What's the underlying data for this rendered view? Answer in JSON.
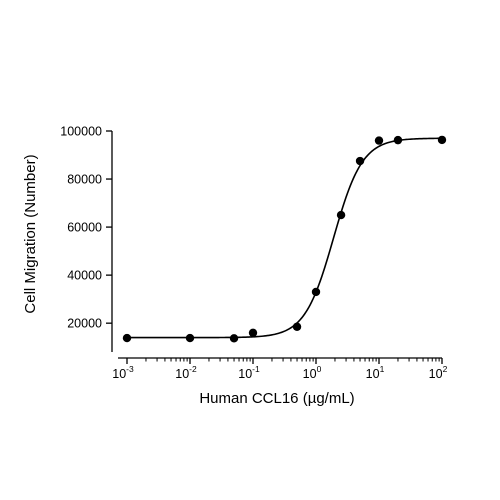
{
  "chart_data": {
    "type": "scatter",
    "xlabel": "Human CCL16 (µg/mL)",
    "ylabel": "Cell Migration (Number)",
    "x_scale": "log",
    "x_ticks": [
      {
        "value": 0.001,
        "base": "10",
        "exp": "-3"
      },
      {
        "value": 0.01,
        "base": "10",
        "exp": "-2"
      },
      {
        "value": 0.1,
        "base": "10",
        "exp": "-1"
      },
      {
        "value": 1,
        "base": "10",
        "exp": "0"
      },
      {
        "value": 10,
        "base": "10",
        "exp": "1"
      },
      {
        "value": 100,
        "base": "10",
        "exp": "2"
      }
    ],
    "y_ticks": [
      {
        "value": 20000,
        "label": "20000"
      },
      {
        "value": 40000,
        "label": "40000"
      },
      {
        "value": 60000,
        "label": "60000"
      },
      {
        "value": 80000,
        "label": "80000"
      },
      {
        "value": 100000,
        "label": "100000"
      }
    ],
    "xlim": [
      0.00069,
      100
    ],
    "ylim": [
      8000,
      100000
    ],
    "grid": false,
    "series": [
      {
        "kind": "points",
        "x": [
          0.001,
          0.01,
          0.05,
          0.1,
          0.5,
          1,
          2.5,
          5,
          10,
          20,
          100
        ],
        "y": [
          13800,
          13800,
          13700,
          16000,
          18500,
          33000,
          65000,
          87500,
          96000,
          96200,
          96300
        ]
      },
      {
        "kind": "fit",
        "model": "4PL",
        "bottom": 14000,
        "top": 97000,
        "ec50": 1.9,
        "hill": 1.9
      }
    ],
    "colors": {
      "marker": "#000000",
      "line": "#000000",
      "axis": "#000000"
    }
  }
}
